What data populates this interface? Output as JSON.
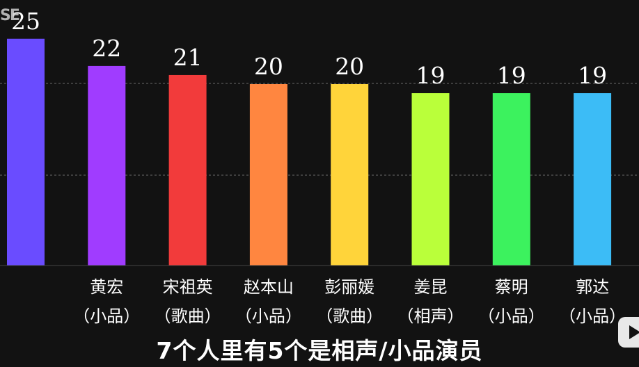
{
  "chart_data": {
    "type": "bar",
    "categories": [
      {
        "name": "",
        "genre": ""
      },
      {
        "name": "黄宏",
        "genre": "（小品）"
      },
      {
        "name": "宋祖英",
        "genre": "（歌曲）"
      },
      {
        "name": "赵本山",
        "genre": "（小品）"
      },
      {
        "name": "彭丽媛",
        "genre": "（歌曲）"
      },
      {
        "name": "姜昆",
        "genre": "（相声）"
      },
      {
        "name": "蔡明",
        "genre": "（小品）"
      },
      {
        "name": "郭达",
        "genre": "（小品）"
      }
    ],
    "values": [
      25,
      22,
      21,
      20,
      20,
      19,
      19,
      19
    ],
    "colors": [
      "#6a4cff",
      "#a03cff",
      "#f23b3b",
      "#ff8640",
      "#ffd43a",
      "#baff3a",
      "#3cf25e",
      "#3cbcf6"
    ],
    "ylim": [
      0,
      25
    ],
    "grid": true,
    "title": "",
    "xlabel": "",
    "ylabel": ""
  },
  "watermark_text": "SE",
  "subtitle": "7个人里有5个是相声/小品演员"
}
